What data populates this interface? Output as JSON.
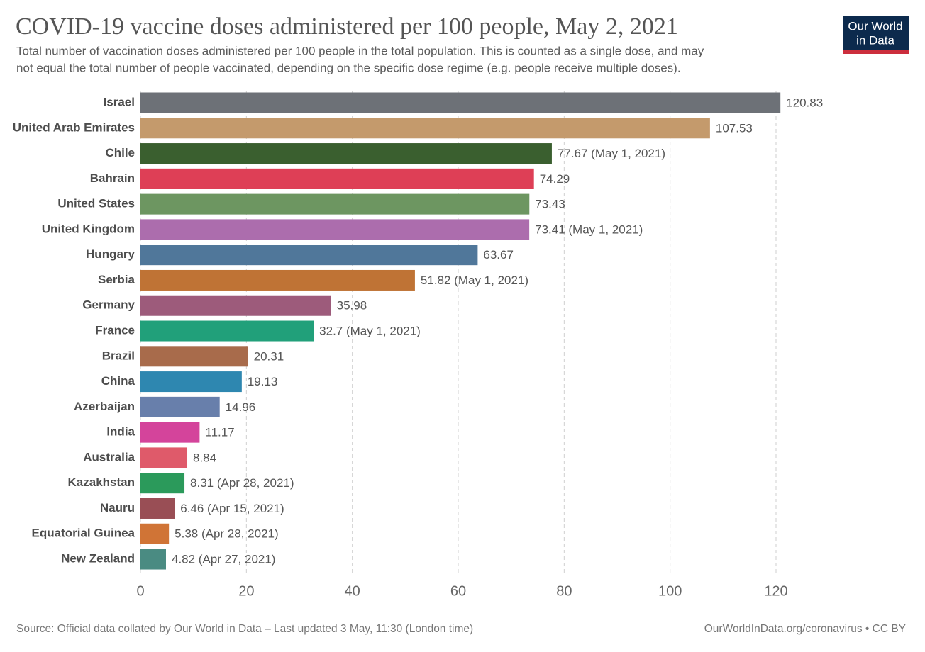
{
  "chart_data": {
    "type": "bar",
    "orientation": "horizontal",
    "title": "COVID-19 vaccine doses administered per 100 people, May 2, 2021",
    "subtitle": [
      "Total number of vaccination doses administered per 100 people in the total population. This is counted as a single dose, and may",
      "not equal the total number of people vaccinated, depending on the specific dose regime (e.g. people receive multiple doses)."
    ],
    "categories": [
      "Israel",
      "United Arab Emirates",
      "Chile",
      "Bahrain",
      "United States",
      "United Kingdom",
      "Hungary",
      "Serbia",
      "Germany",
      "France",
      "Brazil",
      "China",
      "Azerbaijan",
      "India",
      "Australia",
      "Kazakhstan",
      "Nauru",
      "Equatorial Guinea",
      "New Zealand"
    ],
    "values": [
      120.83,
      107.53,
      77.67,
      74.29,
      73.43,
      73.41,
      63.67,
      51.82,
      35.98,
      32.7,
      20.31,
      19.13,
      14.96,
      11.17,
      8.84,
      8.31,
      6.46,
      5.38,
      4.82
    ],
    "value_labels": [
      "120.83",
      "107.53",
      "77.67 (May 1, 2021)",
      "74.29",
      "73.43",
      "73.41 (May 1, 2021)",
      "63.67",
      "51.82 (May 1, 2021)",
      "35.98",
      "32.7 (May 1, 2021)",
      "20.31",
      "19.13",
      "14.96",
      "11.17",
      "8.84",
      "8.31 (Apr 28, 2021)",
      "6.46 (Apr 15, 2021)",
      "5.38 (Apr 28, 2021)",
      "4.82 (Apr 27, 2021)"
    ],
    "colors": [
      "#6d7177",
      "#c49a6c",
      "#3a5f2f",
      "#de3f56",
      "#6d9661",
      "#ac6dad",
      "#50779a",
      "#bf7335",
      "#9d5b7b",
      "#21a07a",
      "#a86b4b",
      "#2e87b0",
      "#687fab",
      "#d4449b",
      "#df5a6a",
      "#2b9a5b",
      "#994e55",
      "#d07436",
      "#4a8b82"
    ],
    "xlim": [
      0,
      120
    ],
    "xticks": [
      0,
      20,
      40,
      60,
      80,
      100,
      120
    ],
    "grid": true,
    "logo": [
      "Our World",
      "in Data"
    ],
    "source": "Source: Official data collated by Our World in Data – Last updated 3 May, 11:30 (London time)",
    "credit": "OurWorldInData.org/coronavirus • CC BY"
  }
}
